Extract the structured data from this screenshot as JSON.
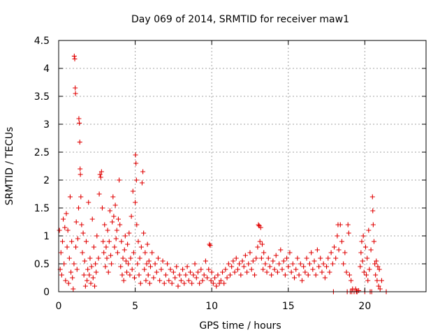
{
  "chart_data": {
    "type": "scatter",
    "title": "Day 069 of 2014, SRMTID for receiver maw1",
    "xlabel": "GPS time / hours",
    "ylabel": "SRMTID / TECUs",
    "xlim": [
      0,
      24
    ],
    "ylim": [
      0,
      4.5
    ],
    "xticks": [
      0,
      5,
      10,
      15,
      20
    ],
    "xtick_labels": [
      "0",
      "5",
      "10",
      "15",
      "20"
    ],
    "yticks": [
      0,
      0.5,
      1,
      1.5,
      2,
      2.5,
      3,
      3.5,
      4,
      4.5
    ],
    "ytick_labels": [
      "0",
      "0.5",
      "1",
      "1.5",
      "2",
      "2.5",
      "3",
      "3.5",
      "4",
      "4.5"
    ],
    "grid": true,
    "marker": "plus",
    "color": "#e00000",
    "series": [
      {
        "name": "maw1",
        "points": [
          [
            0.05,
            1.1
          ],
          [
            0.1,
            0.4
          ],
          [
            0.15,
            0.7
          ],
          [
            0.2,
            0.3
          ],
          [
            0.25,
            0.9
          ],
          [
            0.3,
            1.3
          ],
          [
            0.35,
            0.5
          ],
          [
            0.4,
            1.15
          ],
          [
            0.45,
            0.2
          ],
          [
            0.5,
            1.4
          ],
          [
            0.55,
            0.8
          ],
          [
            0.6,
            1.1
          ],
          [
            0.65,
            0.15
          ],
          [
            0.7,
            0.6
          ],
          [
            0.75,
            1.7
          ],
          [
            0.8,
            0.35
          ],
          [
            0.85,
            0.9
          ],
          [
            0.9,
            0.25
          ],
          [
            0.95,
            0.05
          ],
          [
            1.0,
            0.5
          ],
          [
            1.02,
            4.22
          ],
          [
            1.05,
            4.17
          ],
          [
            1.08,
            3.65
          ],
          [
            1.1,
            3.55
          ],
          [
            1.12,
            0.8
          ],
          [
            1.15,
            1.25
          ],
          [
            1.2,
            0.4
          ],
          [
            1.25,
            0.95
          ],
          [
            1.3,
            1.5
          ],
          [
            1.32,
            3.1
          ],
          [
            1.35,
            3.02
          ],
          [
            1.38,
            2.68
          ],
          [
            1.4,
            2.2
          ],
          [
            1.42,
            2.1
          ],
          [
            1.45,
            1.7
          ],
          [
            1.5,
            1.2
          ],
          [
            1.55,
            0.7
          ],
          [
            1.6,
            1.05
          ],
          [
            1.65,
            0.3
          ],
          [
            1.7,
            0.55
          ],
          [
            1.75,
            0.1
          ],
          [
            1.8,
            0.9
          ],
          [
            1.85,
            0.2
          ],
          [
            1.9,
            0.4
          ],
          [
            1.95,
            1.6
          ],
          [
            2.0,
            0.3
          ],
          [
            2.05,
            0.6
          ],
          [
            2.1,
            0.15
          ],
          [
            2.15,
            0.45
          ],
          [
            2.2,
            1.3
          ],
          [
            2.25,
            0.25
          ],
          [
            2.3,
            0.8
          ],
          [
            2.35,
            0.1
          ],
          [
            2.4,
            0.5
          ],
          [
            2.45,
            0.35
          ],
          [
            2.5,
            1.0
          ],
          [
            2.6,
            0.6
          ],
          [
            2.65,
            1.75
          ],
          [
            2.7,
            2.1
          ],
          [
            2.75,
            2.05
          ],
          [
            2.8,
            2.15
          ],
          [
            2.85,
            1.5
          ],
          [
            2.9,
            0.9
          ],
          [
            2.95,
            0.7
          ],
          [
            3.0,
            1.2
          ],
          [
            3.05,
            0.45
          ],
          [
            3.1,
            0.8
          ],
          [
            3.15,
            0.6
          ],
          [
            3.2,
            1.1
          ],
          [
            3.25,
            0.35
          ],
          [
            3.3,
            0.9
          ],
          [
            3.35,
            1.45
          ],
          [
            3.4,
            0.65
          ],
          [
            3.45,
            0.5
          ],
          [
            3.5,
            1.25
          ],
          [
            3.55,
            1.7
          ],
          [
            3.6,
            1.35
          ],
          [
            3.65,
            0.8
          ],
          [
            3.7,
            1.55
          ],
          [
            3.75,
            0.95
          ],
          [
            3.8,
            1.1
          ],
          [
            3.85,
            0.7
          ],
          [
            3.9,
            1.3
          ],
          [
            3.95,
            2.0
          ],
          [
            4.0,
            1.2
          ],
          [
            4.05,
            0.45
          ],
          [
            4.1,
            0.9
          ],
          [
            4.15,
            0.3
          ],
          [
            4.2,
            0.6
          ],
          [
            4.25,
            0.2
          ],
          [
            4.3,
            0.75
          ],
          [
            4.35,
            1.0
          ],
          [
            4.4,
            0.55
          ],
          [
            4.45,
            0.35
          ],
          [
            4.5,
            0.85
          ],
          [
            4.55,
            0.5
          ],
          [
            4.6,
            1.05
          ],
          [
            4.65,
            0.3
          ],
          [
            4.7,
            0.6
          ],
          [
            4.75,
            1.35
          ],
          [
            4.8,
            0.4
          ],
          [
            4.85,
            1.8
          ],
          [
            4.9,
            0.7
          ],
          [
            4.95,
            0.25
          ],
          [
            5.0,
            1.6
          ],
          [
            5.02,
            2.45
          ],
          [
            5.05,
            2.3
          ],
          [
            5.08,
            2.0
          ],
          [
            5.1,
            1.2
          ],
          [
            5.15,
            0.5
          ],
          [
            5.2,
            0.9
          ],
          [
            5.25,
            0.3
          ],
          [
            5.3,
            0.6
          ],
          [
            5.35,
            0.15
          ],
          [
            5.4,
            0.8
          ],
          [
            5.45,
            1.95
          ],
          [
            5.5,
            2.15
          ],
          [
            5.55,
            1.05
          ],
          [
            5.6,
            0.4
          ],
          [
            5.65,
            0.7
          ],
          [
            5.7,
            0.2
          ],
          [
            5.75,
            0.5
          ],
          [
            5.8,
            0.85
          ],
          [
            5.85,
            0.3
          ],
          [
            5.9,
            0.55
          ],
          [
            5.95,
            0.15
          ],
          [
            6.0,
            0.45
          ],
          [
            6.1,
            0.7
          ],
          [
            6.2,
            0.25
          ],
          [
            6.3,
            0.5
          ],
          [
            6.4,
            0.35
          ],
          [
            6.5,
            0.6
          ],
          [
            6.6,
            0.2
          ],
          [
            6.7,
            0.4
          ],
          [
            6.8,
            0.55
          ],
          [
            6.9,
            0.15
          ],
          [
            7.0,
            0.3
          ],
          [
            7.1,
            0.5
          ],
          [
            7.2,
            0.2
          ],
          [
            7.3,
            0.4
          ],
          [
            7.4,
            0.15
          ],
          [
            7.5,
            0.35
          ],
          [
            7.6,
            0.25
          ],
          [
            7.7,
            0.45
          ],
          [
            7.8,
            0.1
          ],
          [
            7.9,
            0.3
          ],
          [
            8.0,
            0.2
          ],
          [
            8.1,
            0.4
          ],
          [
            8.2,
            0.15
          ],
          [
            8.3,
            0.3
          ],
          [
            8.4,
            0.45
          ],
          [
            8.5,
            0.2
          ],
          [
            8.6,
            0.35
          ],
          [
            8.7,
            0.15
          ],
          [
            8.8,
            0.3
          ],
          [
            8.9,
            0.5
          ],
          [
            9.0,
            0.25
          ],
          [
            9.1,
            0.35
          ],
          [
            9.2,
            0.15
          ],
          [
            9.3,
            0.4
          ],
          [
            9.4,
            0.2
          ],
          [
            9.5,
            0.3
          ],
          [
            9.6,
            0.55
          ],
          [
            9.7,
            0.25
          ],
          [
            9.8,
            0.4
          ],
          [
            9.85,
            0.85
          ],
          [
            9.9,
            0.83
          ],
          [
            9.95,
            0.2
          ],
          [
            10.0,
            0.35
          ],
          [
            10.1,
            0.15
          ],
          [
            10.2,
            0.25
          ],
          [
            10.3,
            0.1
          ],
          [
            10.4,
            0.3
          ],
          [
            10.5,
            0.15
          ],
          [
            10.6,
            0.2
          ],
          [
            10.7,
            0.35
          ],
          [
            10.8,
            0.15
          ],
          [
            10.9,
            0.4
          ],
          [
            11.0,
            0.25
          ],
          [
            11.1,
            0.5
          ],
          [
            11.2,
            0.3
          ],
          [
            11.3,
            0.45
          ],
          [
            11.4,
            0.55
          ],
          [
            11.5,
            0.35
          ],
          [
            11.6,
            0.6
          ],
          [
            11.7,
            0.4
          ],
          [
            11.8,
            0.5
          ],
          [
            11.9,
            0.3
          ],
          [
            12.0,
            0.55
          ],
          [
            12.1,
            0.45
          ],
          [
            12.2,
            0.65
          ],
          [
            12.3,
            0.35
          ],
          [
            12.4,
            0.5
          ],
          [
            12.5,
            0.7
          ],
          [
            12.6,
            0.4
          ],
          [
            12.7,
            0.55
          ],
          [
            12.8,
            0.3
          ],
          [
            12.9,
            0.6
          ],
          [
            13.0,
            0.8
          ],
          [
            13.05,
            1.2
          ],
          [
            13.1,
            1.18
          ],
          [
            13.15,
            0.9
          ],
          [
            13.2,
            1.15
          ],
          [
            13.25,
            0.6
          ],
          [
            13.3,
            0.85
          ],
          [
            13.35,
            0.4
          ],
          [
            13.4,
            0.7
          ],
          [
            13.5,
            0.5
          ],
          [
            13.6,
            0.35
          ],
          [
            13.7,
            0.6
          ],
          [
            13.8,
            0.45
          ],
          [
            13.9,
            0.3
          ],
          [
            14.0,
            0.55
          ],
          [
            14.1,
            0.4
          ],
          [
            14.2,
            0.65
          ],
          [
            14.3,
            0.35
          ],
          [
            14.4,
            0.5
          ],
          [
            14.5,
            0.75
          ],
          [
            14.6,
            0.4
          ],
          [
            14.7,
            0.55
          ],
          [
            14.8,
            0.3
          ],
          [
            14.9,
            0.6
          ],
          [
            15.0,
            0.45
          ],
          [
            15.1,
            0.7
          ],
          [
            15.2,
            0.35
          ],
          [
            15.3,
            0.5
          ],
          [
            15.4,
            0.25
          ],
          [
            15.5,
            0.4
          ],
          [
            15.6,
            0.6
          ],
          [
            15.7,
            0.3
          ],
          [
            15.8,
            0.5
          ],
          [
            15.9,
            0.2
          ],
          [
            16.0,
            0.45
          ],
          [
            16.1,
            0.35
          ],
          [
            16.2,
            0.6
          ],
          [
            16.3,
            0.3
          ],
          [
            16.4,
            0.5
          ],
          [
            16.5,
            0.7
          ],
          [
            16.6,
            0.4
          ],
          [
            16.7,
            0.55
          ],
          [
            16.8,
            0.3
          ],
          [
            16.9,
            0.75
          ],
          [
            17.0,
            0.45
          ],
          [
            17.1,
            0.6
          ],
          [
            17.2,
            0.35
          ],
          [
            17.3,
            0.5
          ],
          [
            17.4,
            0.25
          ],
          [
            17.5,
            0.45
          ],
          [
            17.6,
            0.6
          ],
          [
            17.7,
            0.35
          ],
          [
            17.8,
            0.7
          ],
          [
            17.9,
            0.5
          ],
          [
            17.95,
            0.0
          ],
          [
            18.0,
            0.8
          ],
          [
            18.1,
            0.6
          ],
          [
            18.2,
            1.0
          ],
          [
            18.25,
            1.2
          ],
          [
            18.3,
            0.75
          ],
          [
            18.4,
            1.2
          ],
          [
            18.5,
            0.9
          ],
          [
            18.6,
            0.5
          ],
          [
            18.7,
            0.7
          ],
          [
            18.8,
            0.35
          ],
          [
            18.85,
            0.0
          ],
          [
            18.9,
            1.2
          ],
          [
            18.95,
            1.05
          ],
          [
            19.0,
            0.3
          ],
          [
            19.05,
            0.0
          ],
          [
            19.1,
            0.2
          ],
          [
            19.15,
            0.0
          ],
          [
            19.2,
            0.05
          ],
          [
            19.3,
            0.0
          ],
          [
            19.4,
            0.05
          ],
          [
            19.45,
            0.0
          ],
          [
            19.5,
            0.0
          ],
          [
            19.6,
            0.02
          ],
          [
            19.7,
            0.45
          ],
          [
            19.75,
            0.7
          ],
          [
            19.8,
            0.9
          ],
          [
            19.85,
            0.55
          ],
          [
            19.9,
            1.0
          ],
          [
            19.95,
            0.35
          ],
          [
            20.0,
            0.0
          ],
          [
            20.05,
            0.8
          ],
          [
            20.1,
            0.3
          ],
          [
            20.15,
            0.6
          ],
          [
            20.2,
            0.2
          ],
          [
            20.25,
            1.1
          ],
          [
            20.3,
            0.4
          ],
          [
            20.35,
            0.0
          ],
          [
            20.4,
            0.75
          ],
          [
            20.45,
            0.0
          ],
          [
            20.5,
            1.7
          ],
          [
            20.52,
            1.45
          ],
          [
            20.55,
            1.2
          ],
          [
            20.6,
            0.9
          ],
          [
            20.65,
            0.5
          ],
          [
            20.7,
            0.3
          ],
          [
            20.75,
            0.55
          ],
          [
            20.8,
            0.2
          ],
          [
            20.85,
            0.45
          ],
          [
            20.9,
            0.1
          ],
          [
            20.95,
            0.4
          ],
          [
            21.0,
            0.05
          ],
          [
            21.1,
            0.2
          ],
          [
            21.4,
            0.0
          ]
        ]
      }
    ]
  }
}
